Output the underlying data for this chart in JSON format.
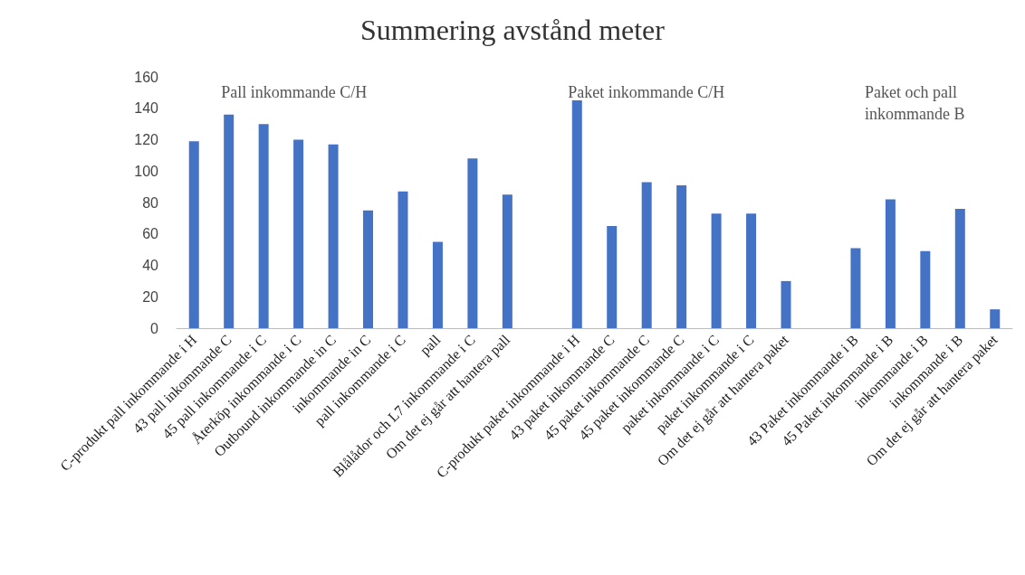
{
  "chart_data": {
    "type": "bar",
    "title": "Summering avstånd meter",
    "categories": [
      "C-produkt pall inkommande i H",
      "43 pall inkommande C",
      "45 pall inkommande i C",
      "Återköp inkommande i C",
      "Outbound inkommande in C",
      "inkommande in C",
      "pall inkommande i C",
      "pall",
      "Blålådor och L7 inkommande i C",
      "Om det ej går att hantera pall",
      null,
      "C-produkt paket inkommande i H",
      "43 paket inkommande C",
      "45 paket inkommande C",
      "45 paket inkommande C",
      "paket inkommande i C",
      "paket inkommande i C",
      "Om det ej går att hantera paket",
      null,
      "43 Paket inkommande i B",
      "45 Paket inkommande i B",
      "inkommande i B",
      "inkommande i B",
      "Om det ej går att hantera paket"
    ],
    "values": [
      119,
      136,
      130,
      120,
      117,
      75,
      87,
      55,
      108,
      85,
      null,
      145,
      65,
      93,
      91,
      73,
      73,
      30,
      null,
      51,
      82,
      49,
      76,
      12
    ],
    "color": "#4472c4",
    "ylim": [
      0,
      160
    ],
    "yticks": [
      0,
      20,
      40,
      60,
      80,
      100,
      120,
      140,
      160
    ],
    "grid": false,
    "annotations": [
      "Pall inkommande C/H",
      "Paket inkommande C/H",
      "Paket och pall\ninkommande B"
    ]
  }
}
